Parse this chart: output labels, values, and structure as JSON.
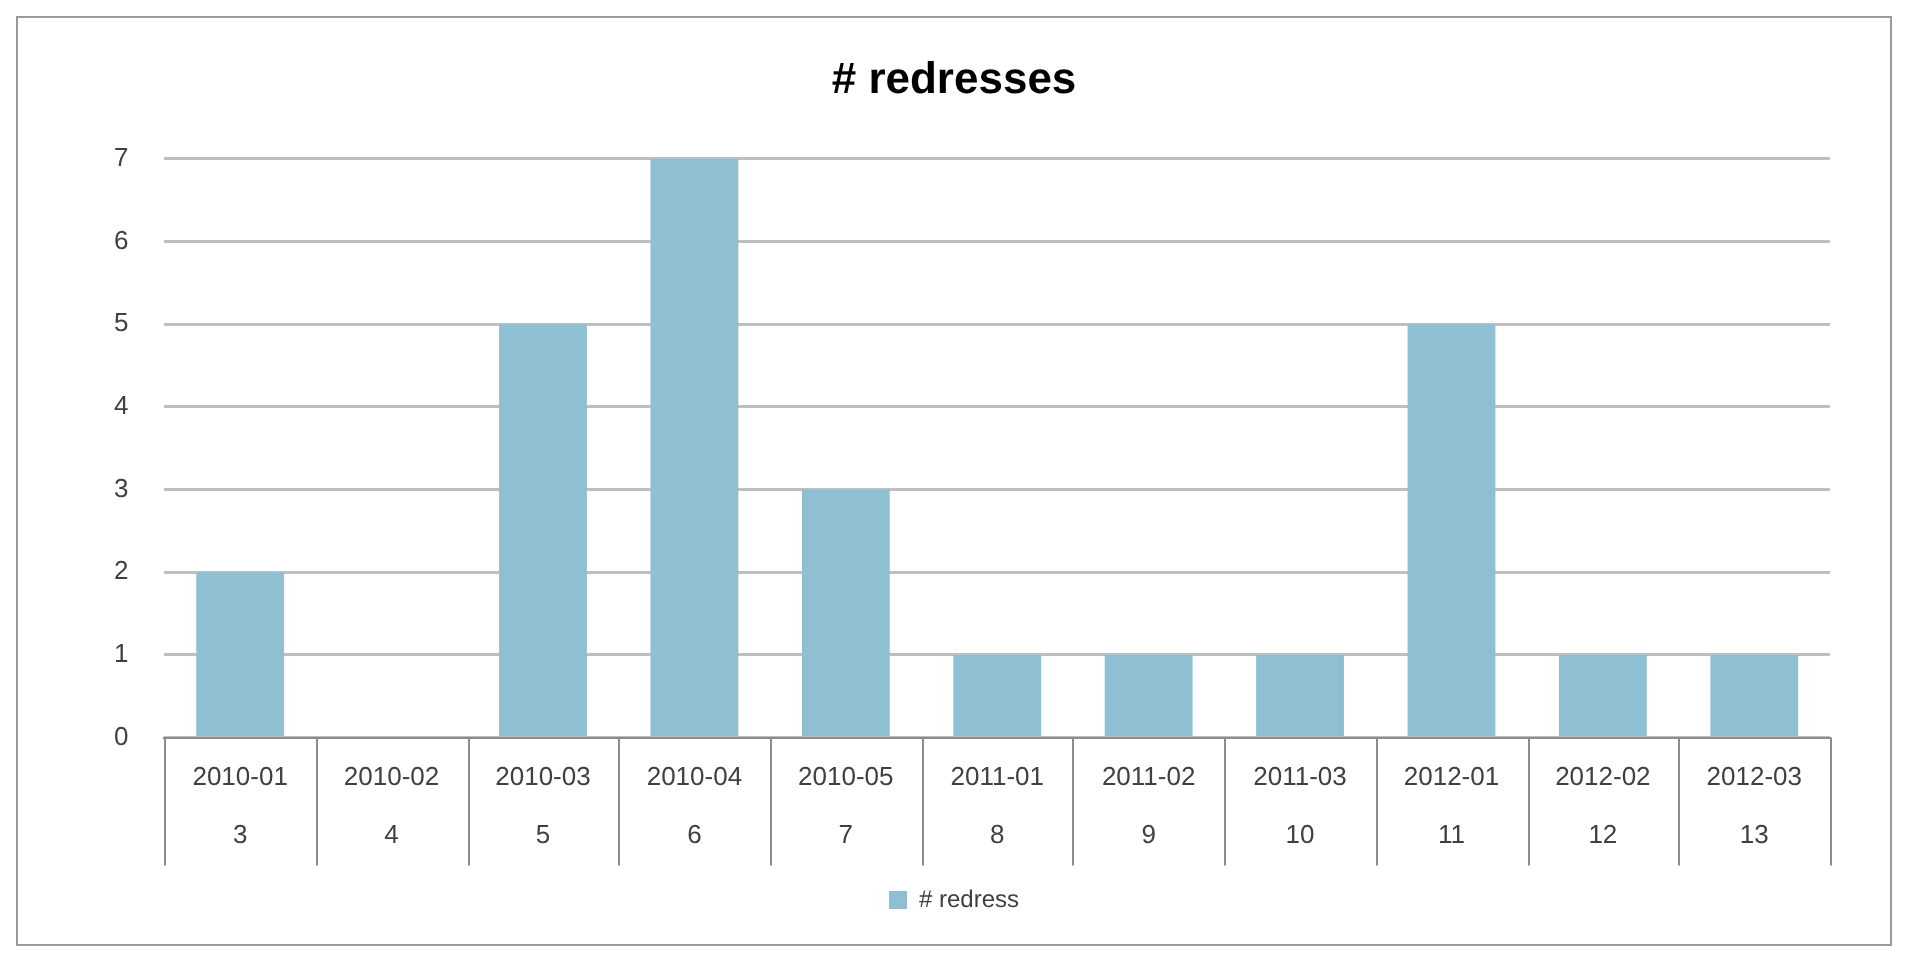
{
  "chart_data": {
    "type": "bar",
    "title": "# redresses",
    "categories": [
      "2010-01\n3",
      "2010-02\n4",
      "2010-03\n5",
      "2010-04\n6",
      "2010-05\n7",
      "2011-01\n8",
      "2011-02\n9",
      "2011-03\n10",
      "2012-01\n11",
      "2012-02\n12",
      "2012-03\n13"
    ],
    "series": [
      {
        "name": "# redress",
        "color": "#8ebfd3",
        "values": [
          2,
          0,
          5,
          7,
          3,
          1,
          1,
          1,
          5,
          1,
          1
        ]
      }
    ],
    "ylim": [
      0,
      7
    ],
    "yticks": [
      0,
      1,
      2,
      3,
      4,
      5,
      6,
      7
    ],
    "grid": "y",
    "legend": "bottom"
  }
}
